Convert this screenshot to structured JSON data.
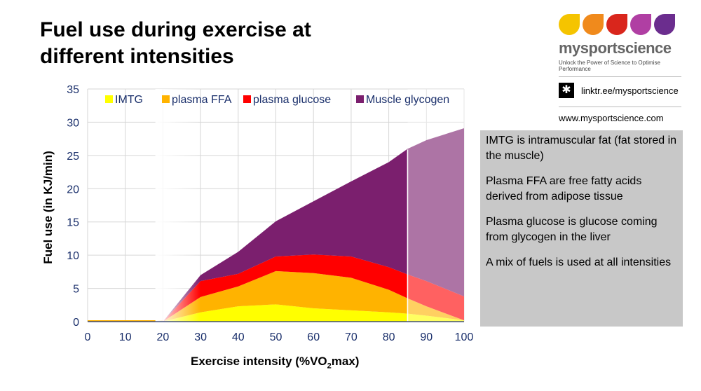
{
  "page": {
    "title_line1": "Fuel use during exercise at",
    "title_line2": "different intensities"
  },
  "brand": {
    "name": "mysportscience",
    "tagline": "Unlock the Power of Science to Optimise Performance",
    "linktree": "linktr.ee/mysportscience",
    "website": "www.mysportscience.com",
    "drop_colors": [
      "#f5c400",
      "#f08a1c",
      "#d9261c",
      "#b03fa3",
      "#6b2d8e"
    ]
  },
  "info": {
    "p1": "IMTG is intramuscular fat (fat stored in the muscle)",
    "p2": "Plasma FFA are free fatty acids derived from adipose tissue",
    "p3": "Plasma glucose is glucose coming from glycogen in the liver",
    "p4": "A mix of fuels is used at all intensities"
  },
  "chart_data": {
    "type": "area",
    "stacked": true,
    "title": "",
    "xlabel": "Exercise intensity (%VO2max)",
    "xlabel_prefix": "Exercise intensity (%VO",
    "xlabel_sub": "2",
    "xlabel_suffix": "max)",
    "ylabel": "Fuel use (in KJ/min)",
    "xlim": [
      0,
      100
    ],
    "ylim": [
      0,
      35
    ],
    "xticks": [
      0,
      10,
      20,
      30,
      40,
      50,
      60,
      70,
      80,
      90,
      100
    ],
    "yticks": [
      0,
      5,
      10,
      15,
      20,
      25,
      30,
      35
    ],
    "legend_position": "top",
    "x": [
      20,
      30,
      40,
      50,
      60,
      70,
      80,
      85,
      90,
      100
    ],
    "extrapolated_from_x": 85,
    "series": [
      {
        "name": "IMTG",
        "color": "#ffff00",
        "values": [
          0,
          1.4,
          2.3,
          2.6,
          2.0,
          1.7,
          1.4,
          1.2,
          0.9,
          0.2
        ]
      },
      {
        "name": "plasma FFA",
        "color": "#ffb300",
        "values": [
          0,
          2.3,
          3.0,
          5.0,
          5.3,
          4.9,
          3.4,
          2.3,
          1.4,
          0
        ]
      },
      {
        "name": "plasma glucose",
        "color": "#ff0000",
        "values": [
          0,
          2.4,
          1.9,
          2.2,
          2.8,
          3.2,
          3.4,
          3.6,
          3.8,
          3.6
        ]
      },
      {
        "name": "Muscle glycogen",
        "color": "#7b1f6e",
        "values": [
          0,
          0.9,
          3.3,
          5.3,
          8.0,
          11.3,
          15.8,
          18.9,
          21.2,
          25.3
        ]
      }
    ]
  }
}
